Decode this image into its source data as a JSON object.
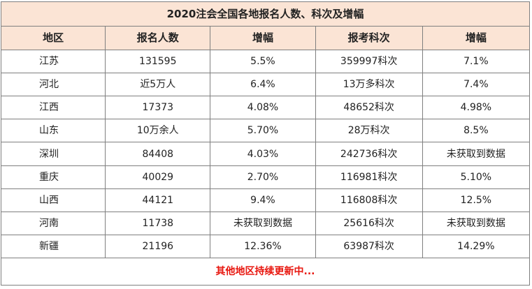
{
  "table": {
    "title": "2020注会全国各地报名人数、科次及增幅",
    "headers": [
      "地区",
      "报名人数",
      "增幅",
      "报考科次",
      "增幅"
    ],
    "rows": [
      [
        "江苏",
        "131595",
        "5.5%",
        "359997科次",
        "7.1%"
      ],
      [
        "河北",
        "近5万人",
        "6.4%",
        "13万多科次",
        "7.4%"
      ],
      [
        "江西",
        "17373",
        "4.08%",
        "48652科次",
        "4.98%"
      ],
      [
        "山东",
        "10万余人",
        "5.70%",
        "28万科次",
        "8.5%"
      ],
      [
        "深圳",
        "84408",
        "4.03%",
        "242736科次",
        "未获取到数据"
      ],
      [
        "重庆",
        "40029",
        "2.70%",
        "116981科次",
        "5.10%"
      ],
      [
        "山西",
        "44121",
        "9.4%",
        "116808科次",
        "12.5%"
      ],
      [
        "河南",
        "11738",
        "未获取到数据",
        "25616科次",
        "未获取到数据"
      ],
      [
        "新疆",
        "21196",
        "12.36%",
        "63987科次",
        "14.29%"
      ]
    ],
    "footer": "其他地区持续更新中..."
  },
  "colors": {
    "header_bg": "#fbe4d5",
    "border": "#7f7f7f",
    "footer_text": "#e8160e"
  }
}
